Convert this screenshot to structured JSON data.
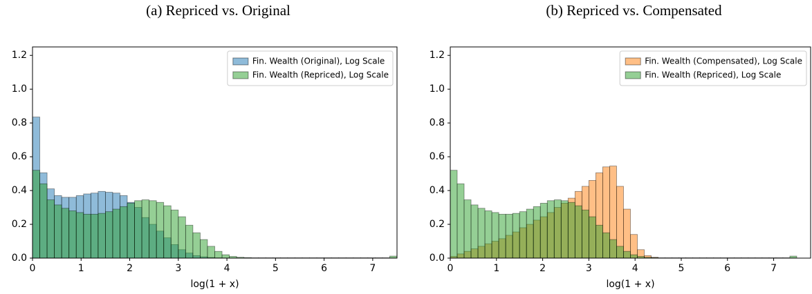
{
  "chart_data": [
    {
      "type": "histogram",
      "title": "(a) Repriced vs. Original",
      "x_label": "log(1 + x)",
      "bins": [
        0,
        0.15,
        0.3,
        0.45,
        0.6,
        0.75,
        0.9,
        1.05,
        1.2,
        1.35,
        1.5,
        1.65,
        1.8,
        1.95,
        2.1,
        2.25,
        2.4,
        2.55,
        2.7,
        2.85,
        3,
        3.15,
        3.3,
        3.45,
        3.6,
        3.75,
        3.9,
        4.05,
        4.2,
        4.35,
        4.5,
        4.65,
        4.8,
        4.95,
        5.1,
        5.25,
        5.4,
        5.55,
        5.7,
        5.85,
        6,
        6.15,
        6.3,
        6.45,
        6.6,
        6.75,
        6.9,
        7.05,
        7.2,
        7.35,
        7.5
      ],
      "series": [
        {
          "name": "Fin. Wealth (Original), Log Scale",
          "color": "#1f77b4",
          "values": [
            0.835,
            0.505,
            0.41,
            0.37,
            0.36,
            0.36,
            0.37,
            0.38,
            0.385,
            0.395,
            0.39,
            0.385,
            0.37,
            0.33,
            0.3,
            0.24,
            0.2,
            0.16,
            0.12,
            0.08,
            0.05,
            0.03,
            0.015,
            0.008,
            0.004,
            0.002,
            0.001,
            0.001,
            0.001,
            0.001,
            0.001,
            0.001,
            0.001,
            0.001,
            0.001,
            0.001,
            0.001,
            0.001,
            0.001,
            0.001,
            0.001,
            0.001,
            0.001,
            0.001,
            0.001,
            0.001,
            0.001,
            0.001,
            0.001,
            0.001
          ]
        },
        {
          "name": "Fin. Wealth (Repriced), Log Scale",
          "color": "#2ca02c",
          "values": [
            0.52,
            0.44,
            0.345,
            0.315,
            0.295,
            0.28,
            0.27,
            0.26,
            0.26,
            0.265,
            0.275,
            0.29,
            0.305,
            0.325,
            0.34,
            0.345,
            0.34,
            0.33,
            0.31,
            0.285,
            0.245,
            0.195,
            0.15,
            0.11,
            0.07,
            0.04,
            0.02,
            0.01,
            0.005,
            0.003,
            0.002,
            0.002,
            0.002,
            0.002,
            0.002,
            0.002,
            0.002,
            0.002,
            0.002,
            0.002,
            0.002,
            0.002,
            0.002,
            0.002,
            0.002,
            0.002,
            0.002,
            0.002,
            0.002,
            0.012
          ]
        }
      ],
      "xlim": [
        0,
        7.5
      ],
      "ylim": [
        0,
        1.25
      ],
      "xticks": [
        0,
        1,
        2,
        3,
        4,
        5,
        6,
        7
      ],
      "yticks": [
        {
          "value": 0,
          "label": "0.0"
        },
        0.2,
        0.4,
        0.6,
        0.8,
        {
          "value": 1,
          "label": "1.0"
        },
        1.2
      ],
      "legend": "upper right"
    },
    {
      "type": "histogram",
      "title": "(b) Repriced vs. Compensated",
      "x_label": "log(1 + x)",
      "bins": [
        0,
        0.15,
        0.3,
        0.45,
        0.6,
        0.75,
        0.9,
        1.05,
        1.2,
        1.35,
        1.5,
        1.65,
        1.8,
        1.95,
        2.1,
        2.25,
        2.4,
        2.55,
        2.7,
        2.85,
        3,
        3.15,
        3.3,
        3.45,
        3.6,
        3.75,
        3.9,
        4.05,
        4.2,
        4.35,
        4.5,
        4.65,
        4.8,
        4.95,
        5.1,
        5.25,
        5.4,
        5.55,
        5.7,
        5.85,
        6,
        6.15,
        6.3,
        6.45,
        6.6,
        6.75,
        6.9,
        7.05,
        7.2,
        7.35,
        7.5
      ],
      "series": [
        {
          "name": "Fin. Wealth (Compensated), Log Scale",
          "color": "#ff7f0e",
          "values": [
            0.01,
            0.025,
            0.04,
            0.055,
            0.07,
            0.085,
            0.1,
            0.115,
            0.135,
            0.155,
            0.18,
            0.2,
            0.225,
            0.245,
            0.27,
            0.3,
            0.325,
            0.355,
            0.395,
            0.425,
            0.46,
            0.505,
            0.54,
            0.545,
            0.425,
            0.29,
            0.14,
            0.05,
            0.015,
            0.005,
            0.001,
            0.001,
            0.001,
            0.001,
            0.001,
            0.001,
            0.001,
            0.001,
            0.001,
            0.001,
            0.001,
            0.001,
            0.001,
            0.001,
            0.001,
            0.001,
            0.001,
            0.001,
            0.001,
            0.001
          ]
        },
        {
          "name": "Fin. Wealth (Repriced), Log Scale",
          "color": "#2ca02c",
          "values": [
            0.52,
            0.44,
            0.345,
            0.315,
            0.295,
            0.28,
            0.27,
            0.26,
            0.26,
            0.265,
            0.275,
            0.29,
            0.305,
            0.325,
            0.34,
            0.345,
            0.34,
            0.33,
            0.31,
            0.285,
            0.245,
            0.195,
            0.15,
            0.11,
            0.07,
            0.04,
            0.02,
            0.01,
            0.005,
            0.003,
            0.002,
            0.002,
            0.002,
            0.002,
            0.002,
            0.002,
            0.002,
            0.002,
            0.002,
            0.002,
            0.002,
            0.002,
            0.002,
            0.002,
            0.002,
            0.002,
            0.002,
            0.002,
            0.002,
            0.012
          ]
        }
      ],
      "xlim": [
        0,
        7.8
      ],
      "ylim": [
        0,
        1.25
      ],
      "xticks": [
        0,
        1,
        2,
        3,
        4,
        5,
        6,
        7
      ],
      "yticks": [
        {
          "value": 0,
          "label": "0.0"
        },
        0.2,
        0.4,
        0.6,
        0.8,
        {
          "value": 1,
          "label": "1.0"
        },
        1.2
      ],
      "legend": "upper right"
    }
  ]
}
